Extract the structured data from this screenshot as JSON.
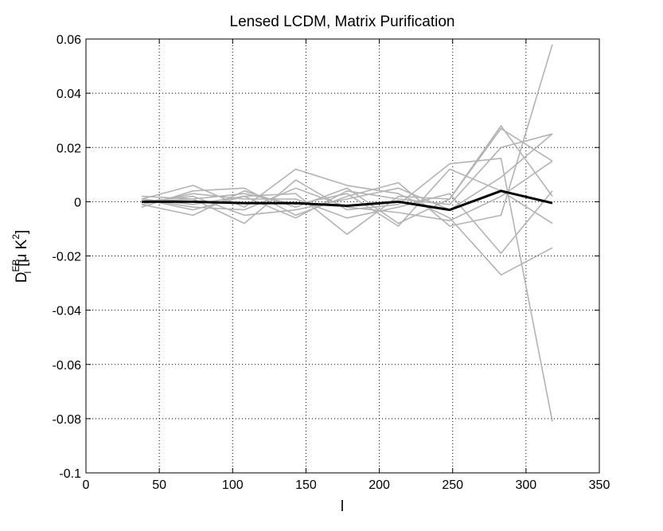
{
  "chart_data": {
    "type": "line",
    "title": "Lensed LCDM, Matrix Purification",
    "xlabel": "l",
    "ylabel": {
      "base": "D",
      "sub": "l",
      "sup": "EB",
      "unit_prefix": "[μ K",
      "unit_sup": "2",
      "unit_suffix": "]"
    },
    "xlim": [
      0,
      350
    ],
    "ylim": [
      -0.1,
      0.06
    ],
    "xticks": [
      0,
      50,
      100,
      150,
      200,
      250,
      300,
      350
    ],
    "xtick_labels": [
      "0",
      "50",
      "100",
      "150",
      "200",
      "250",
      "300",
      "350"
    ],
    "yticks": [
      -0.1,
      -0.08,
      -0.06,
      -0.04,
      -0.02,
      0,
      0.02,
      0.04,
      0.06
    ],
    "ytick_labels": [
      "-0.1",
      "-0.08",
      "-0.06",
      "-0.04",
      "-0.02",
      "0",
      "0.02",
      "0.04",
      "0.06"
    ],
    "grid": true,
    "x": [
      38,
      73,
      108,
      143,
      178,
      213,
      248,
      283,
      318
    ],
    "series": [
      {
        "style": "realization",
        "color": "#b3b3b3",
        "values": [
          0.001,
          0.006,
          -0.002,
          0.012,
          0.006,
          0.003,
          -0.006,
          -0.027,
          -0.017
        ]
      },
      {
        "style": "realization",
        "color": "#b3b3b3",
        "values": [
          -0.001,
          -0.005,
          0.004,
          -0.002,
          0.005,
          -0.008,
          0.001,
          0.027,
          0.015
        ]
      },
      {
        "style": "realization",
        "color": "#b3b3b3",
        "values": [
          0.002,
          0.001,
          -0.008,
          0.008,
          -0.003,
          -0.001,
          0.014,
          0.016,
          -0.081
        ]
      },
      {
        "style": "realization",
        "color": "#b3b3b3",
        "values": [
          -0.002,
          0.004,
          0.005,
          -0.005,
          0.002,
          0.007,
          -0.009,
          -0.005,
          0.058
        ]
      },
      {
        "style": "realization",
        "color": "#b3b3b3",
        "values": [
          0.001,
          -0.003,
          0.002,
          0.003,
          -0.012,
          0.002,
          0.001,
          0.028,
          0.002
        ]
      },
      {
        "style": "realization",
        "color": "#b3b3b3",
        "values": [
          0.0,
          0.002,
          -0.005,
          -0.003,
          0.001,
          0.005,
          -0.003,
          0.009,
          0.025
        ]
      },
      {
        "style": "realization",
        "color": "#b3b3b3",
        "values": [
          -0.001,
          0.003,
          0.001,
          0.001,
          -0.006,
          -0.002,
          0.003,
          -0.019,
          0.004
        ]
      },
      {
        "style": "realization",
        "color": "#b3b3b3",
        "values": [
          0.001,
          -0.002,
          -0.003,
          0.005,
          -0.002,
          -0.004,
          -0.007,
          0.002,
          0.015
        ]
      },
      {
        "style": "realization",
        "color": "#b3b3b3",
        "values": [
          0.0,
          0.001,
          0.003,
          -0.001,
          0.003,
          -0.009,
          0.012,
          0.004,
          -0.008
        ]
      },
      {
        "style": "realization",
        "color": "#b3b3b3",
        "values": [
          0.001,
          -0.001,
          0.002,
          -0.006,
          0.004,
          0.001,
          -0.001,
          0.02,
          0.025
        ]
      },
      {
        "style": "mean",
        "color": "#000000",
        "values": [
          0.0,
          0.0,
          -0.0005,
          -0.0005,
          -0.0015,
          0.0,
          -0.003,
          0.004,
          -0.0005
        ]
      }
    ]
  }
}
